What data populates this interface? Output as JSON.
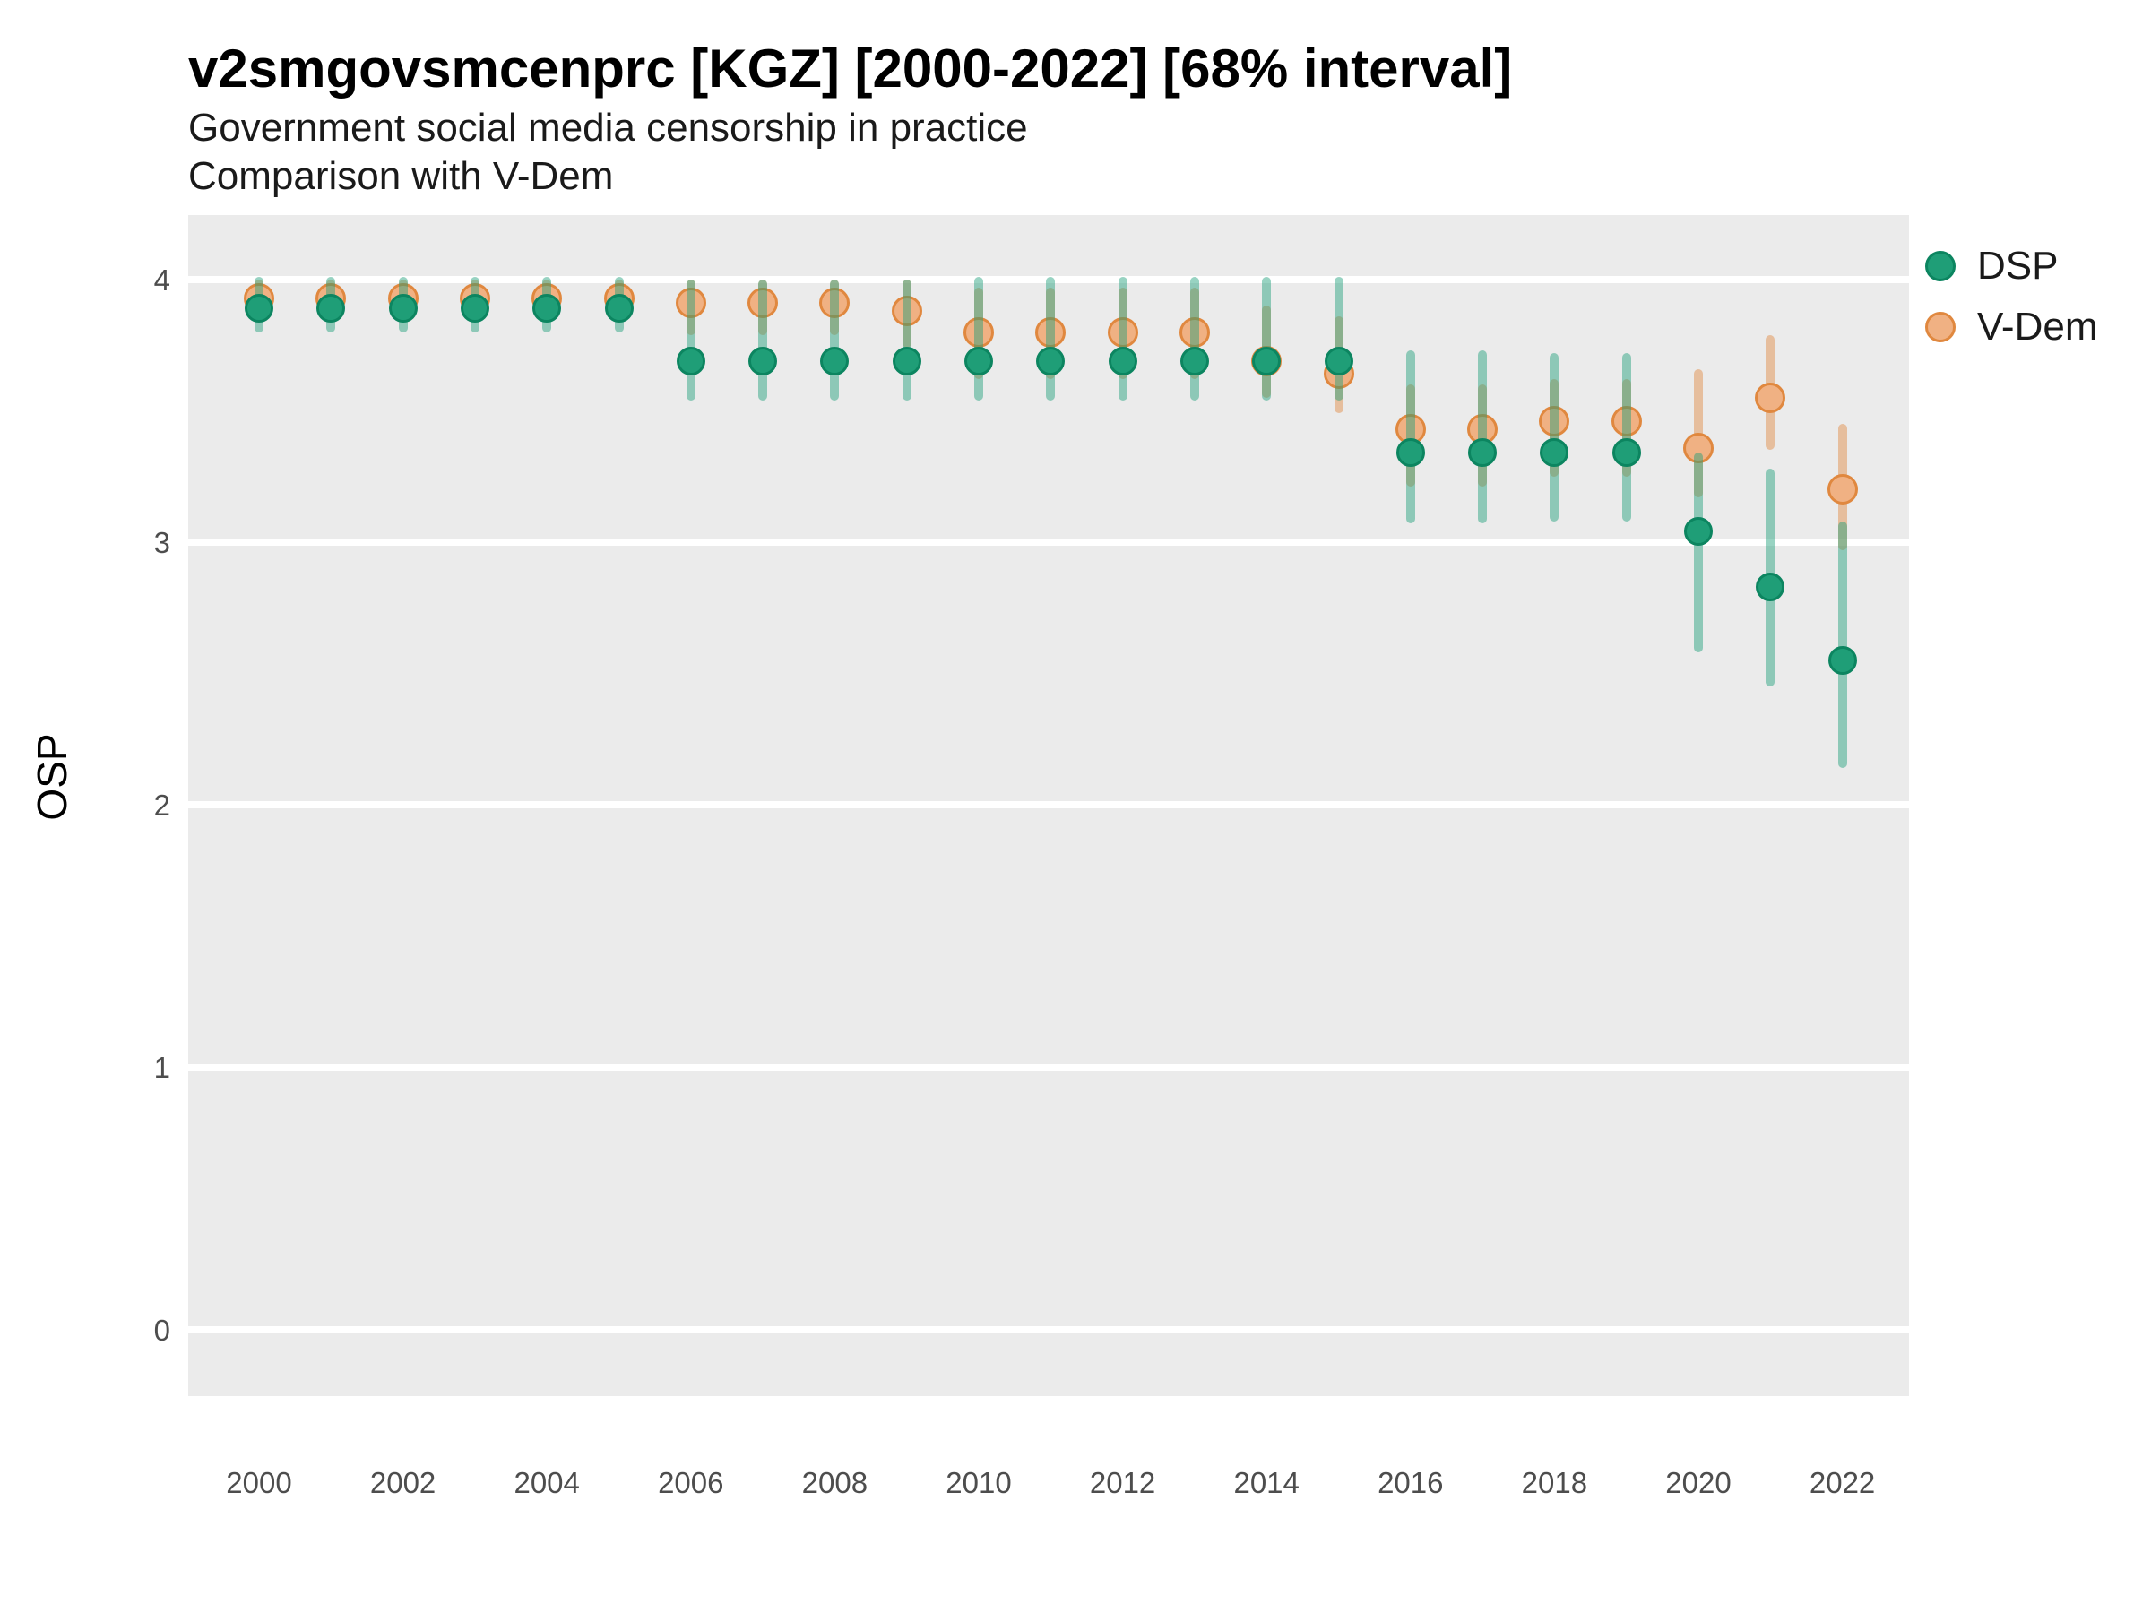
{
  "chart_data": {
    "type": "pointrange",
    "title": "v2smgovsmcenprc [KGZ] [2000-2022] [68% interval]",
    "subtitle": "Government social media censorship in practice",
    "subtitle2": "Comparison with V-Dem",
    "ylabel": "OSP",
    "xlabel": "",
    "interval": "68%",
    "legend_position": "right",
    "grid": "major-horizontal-white-on-gray",
    "panel_bg": "#ebebeb",
    "grid_color": "#ffffff",
    "ylim": [
      -0.26,
      4.25
    ],
    "yticks": [
      4,
      3,
      2,
      1,
      0
    ],
    "xticks": [
      2000,
      2002,
      2004,
      2006,
      2008,
      2010,
      2012,
      2014,
      2016,
      2018,
      2020,
      2022
    ],
    "x": [
      2000,
      2001,
      2002,
      2003,
      2004,
      2005,
      2006,
      2007,
      2008,
      2009,
      2010,
      2011,
      2012,
      2013,
      2014,
      2015,
      2016,
      2017,
      2018,
      2019,
      2020,
      2021,
      2022
    ],
    "series": [
      {
        "name": "DSP",
        "fill": "#1f9e77",
        "stroke": "#0c8560",
        "bar": "rgba(27,158,119,0.45)",
        "points": [
          3.89,
          3.89,
          3.89,
          3.89,
          3.89,
          3.89,
          3.69,
          3.69,
          3.69,
          3.69,
          3.69,
          3.69,
          3.69,
          3.69,
          3.69,
          3.69,
          3.34,
          3.34,
          3.34,
          3.34,
          3.04,
          2.83,
          2.55
        ],
        "low": [
          3.8,
          3.8,
          3.8,
          3.8,
          3.8,
          3.8,
          3.54,
          3.54,
          3.54,
          3.54,
          3.54,
          3.54,
          3.54,
          3.54,
          3.54,
          3.54,
          3.07,
          3.07,
          3.08,
          3.08,
          2.58,
          2.45,
          2.14
        ],
        "high": [
          4.01,
          4.01,
          4.01,
          4.01,
          4.01,
          4.01,
          4.0,
          4.0,
          4.0,
          4.0,
          4.01,
          4.01,
          4.01,
          4.01,
          4.01,
          4.01,
          3.73,
          3.73,
          3.72,
          3.72,
          3.34,
          3.28,
          3.08
        ]
      },
      {
        "name": "V-Dem",
        "fill": "#f0b183",
        "stroke": "#e0883f",
        "bar": "rgba(224,136,63,0.45)",
        "points": [
          3.93,
          3.93,
          3.93,
          3.93,
          3.93,
          3.93,
          3.91,
          3.91,
          3.91,
          3.88,
          3.8,
          3.8,
          3.8,
          3.8,
          3.69,
          3.64,
          3.43,
          3.43,
          3.46,
          3.46,
          3.36,
          3.55,
          3.2
        ],
        "low": [
          3.85,
          3.85,
          3.85,
          3.85,
          3.85,
          3.85,
          3.79,
          3.79,
          3.79,
          3.74,
          3.62,
          3.62,
          3.62,
          3.62,
          3.55,
          3.49,
          3.21,
          3.21,
          3.25,
          3.25,
          3.17,
          3.35,
          2.97
        ],
        "high": [
          4.0,
          4.0,
          4.0,
          4.0,
          4.0,
          4.0,
          4.0,
          4.0,
          4.0,
          4.0,
          3.97,
          3.97,
          3.97,
          3.97,
          3.9,
          3.86,
          3.6,
          3.6,
          3.62,
          3.62,
          3.66,
          3.79,
          3.45
        ]
      }
    ]
  }
}
